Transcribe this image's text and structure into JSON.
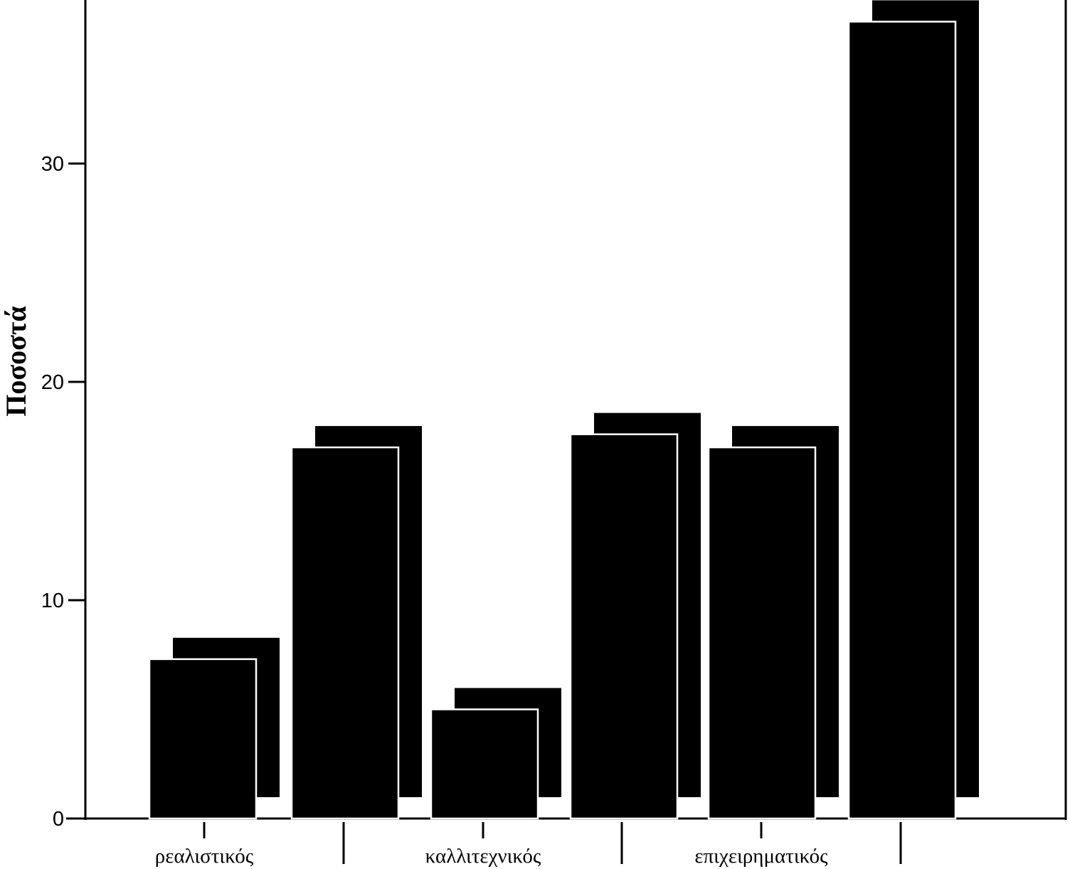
{
  "chart_data": {
    "type": "bar",
    "title": "",
    "xlabel": "",
    "ylabel": "Ποσοστά",
    "ylim": [
      0,
      37
    ],
    "yticks": [
      0,
      10,
      20,
      30
    ],
    "categories": [
      "ρεαλιστικός",
      "καλλιτεχνικός",
      "επιχειρηματικός"
    ],
    "bars": [
      7.3,
      17.0,
      5.0,
      17.6,
      17.0,
      36.5
    ],
    "grid": false,
    "legend": "none",
    "style": "3d-shadowed black bars with white outline",
    "colors": {
      "bar": "#000000",
      "outline": "#ffffff",
      "axis": "#000000"
    }
  }
}
